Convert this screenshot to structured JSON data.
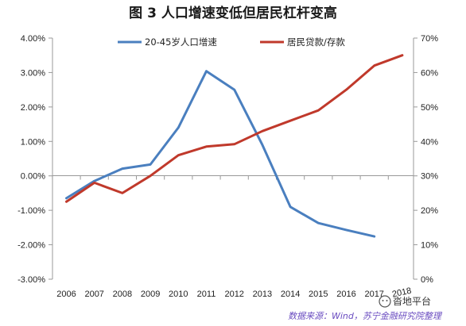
{
  "chart_data": {
    "type": "line",
    "title": "图 3 人口增速变低但居民杠杆变高",
    "categories": [
      "2006",
      "2007",
      "2008",
      "2009",
      "2010",
      "2011",
      "2012",
      "2013",
      "2014",
      "2015",
      "2016",
      "2017",
      "2018"
    ],
    "y_left": {
      "min": -0.03,
      "max": 0.04,
      "step": 0.01,
      "tick_labels": [
        "4.00%",
        "3.00%",
        "2.00%",
        "1.00%",
        "0.00%",
        "-1.00%",
        "-2.00%",
        "-3.00%"
      ]
    },
    "y_right": {
      "min": 0,
      "max": 0.7,
      "step": 0.1,
      "tick_labels": [
        "70%",
        "60%",
        "50%",
        "40%",
        "30%",
        "20%",
        "10%",
        "0%"
      ]
    },
    "series": [
      {
        "name": "20-45岁人口增速",
        "axis": "left",
        "color": "#4a7fbf",
        "values": [
          -0.0065,
          -0.0015,
          0.0021,
          0.0033,
          0.014,
          0.0304,
          0.025,
          0.009,
          -0.009,
          -0.0137,
          -0.0157,
          -0.0176,
          null
        ]
      },
      {
        "name": "居民贷款/存款",
        "axis": "right",
        "color": "#c0392b",
        "values": [
          0.225,
          0.28,
          0.25,
          0.3,
          0.36,
          0.385,
          0.392,
          0.43,
          0.46,
          0.49,
          0.55,
          0.62,
          0.65
        ]
      }
    ],
    "legend_position": "top",
    "grid": false
  },
  "source_text": "数据来源：Wind，苏宁金融研究院整理",
  "watermark_text": "沓地平台"
}
